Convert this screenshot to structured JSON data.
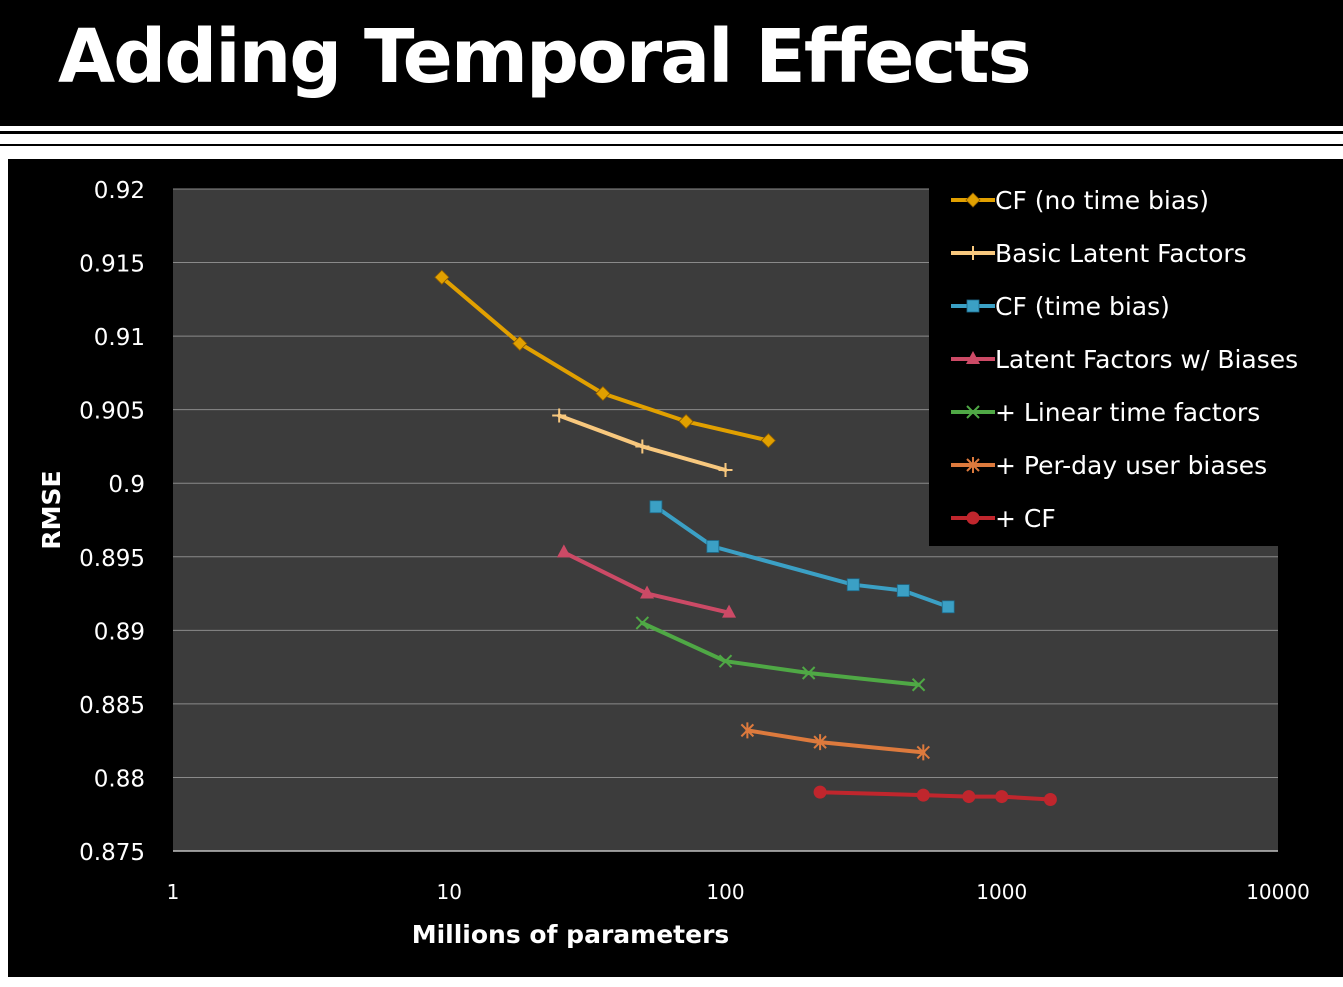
{
  "slide": {
    "title": "Adding Temporal Effects"
  },
  "colors": {
    "background": "#000000",
    "plot_area": "#3c3c3c",
    "gridline": "#8a8a8a",
    "text": "#ffffff"
  },
  "chart_data": {
    "type": "line",
    "xlabel": "Millions of parameters",
    "ylabel": "RMSE",
    "xscale": "log",
    "xlim": [
      1,
      10000
    ],
    "ylim": [
      0.875,
      0.92
    ],
    "xticks": [
      1,
      10,
      100,
      1000,
      10000
    ],
    "xtick_labels": [
      "1",
      "10",
      "100",
      "1000",
      "10000"
    ],
    "yticks": [
      0.875,
      0.88,
      0.885,
      0.89,
      0.895,
      0.9,
      0.905,
      0.91,
      0.915,
      0.92
    ],
    "ytick_labels": [
      "0.875",
      "0.88",
      "0.885",
      "0.89",
      "0.895",
      "0.9",
      "0.905",
      "0.91",
      "0.915",
      "0.92"
    ],
    "grid": "horizontal",
    "legend_position": "top-right",
    "series": [
      {
        "name": "CF (no time bias)",
        "color": "#e1a000",
        "marker": "diamond",
        "x": [
          9.4,
          18,
          36,
          72,
          143
        ],
        "y": [
          0.914,
          0.9095,
          0.9061,
          0.9042,
          0.9029
        ]
      },
      {
        "name": "Basic Latent Factors",
        "color": "#f8c87e",
        "marker": "plus",
        "x": [
          25,
          50,
          100
        ],
        "y": [
          0.9046,
          0.9025,
          0.9009
        ]
      },
      {
        "name": "CF (time bias)",
        "color": "#3ba0c5",
        "marker": "square",
        "x": [
          56,
          90,
          290,
          440,
          640
        ],
        "y": [
          0.8984,
          0.8957,
          0.8931,
          0.8927,
          0.8916
        ]
      },
      {
        "name": "Latent Factors w/ Biases",
        "color": "#cc4a66",
        "marker": "triangle",
        "x": [
          26,
          52,
          103
        ],
        "y": [
          0.8953,
          0.8925,
          0.8912
        ]
      },
      {
        "name": "+ Linear time factors",
        "color": "#4fa845",
        "marker": "x",
        "x": [
          50,
          100,
          200,
          500
        ],
        "y": [
          0.8905,
          0.8879,
          0.8871,
          0.8863
        ]
      },
      {
        "name": "+ Per-day user biases",
        "color": "#dd7a3d",
        "marker": "star",
        "x": [
          120,
          220,
          520
        ],
        "y": [
          0.8832,
          0.8824,
          0.8817
        ]
      },
      {
        "name": "+ CF",
        "color": "#c0262d",
        "marker": "circle",
        "x": [
          220,
          520,
          760,
          1000,
          1500
        ],
        "y": [
          0.879,
          0.8788,
          0.8787,
          0.8787,
          0.8785
        ]
      }
    ]
  }
}
